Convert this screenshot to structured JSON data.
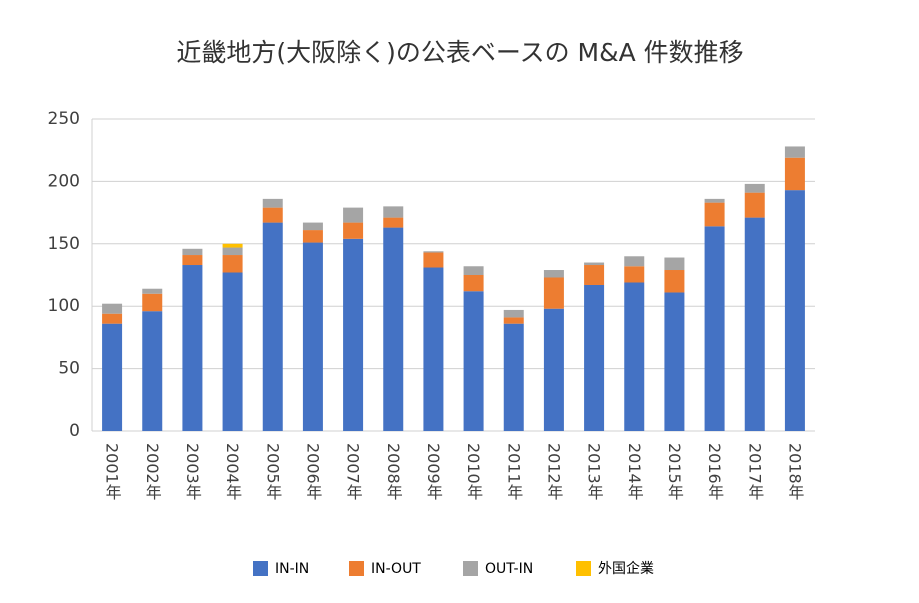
{
  "chart_data": {
    "type": "stacked_bar",
    "title": "近畿地方(大阪除く)の公表ベースの M&A 件数推移",
    "categories": [
      "2001年",
      "2002年",
      "2003年",
      "2004年",
      "2005年",
      "2006年",
      "2007年",
      "2008年",
      "2009年",
      "2010年",
      "2011年",
      "2012年",
      "2013年",
      "2014年",
      "2015年",
      "2016年",
      "2017年",
      "2018年"
    ],
    "series": [
      {
        "name": "IN-IN",
        "color": "#4472c4",
        "values": [
          86,
          96,
          133,
          127,
          167,
          151,
          154,
          163,
          131,
          112,
          86,
          98,
          117,
          119,
          111,
          164,
          171,
          193
        ]
      },
      {
        "name": "IN-OUT",
        "color": "#ed7d31",
        "values": [
          8,
          14,
          8,
          14,
          12,
          10,
          13,
          8,
          12,
          13,
          5,
          25,
          16,
          13,
          18,
          19,
          20,
          26
        ]
      },
      {
        "name": "OUT-IN",
        "color": "#a5a5a5",
        "values": [
          8,
          4,
          5,
          6,
          7,
          6,
          12,
          9,
          1,
          7,
          6,
          6,
          2,
          8,
          10,
          3,
          7,
          9
        ]
      },
      {
        "name": "外国企業",
        "color": "#ffc000",
        "values": [
          0,
          0,
          0,
          3,
          0,
          0,
          0,
          0,
          0,
          0,
          0,
          0,
          0,
          0,
          0,
          0,
          0,
          0
        ]
      }
    ],
    "ylim": [
      0,
      250
    ],
    "yticks": [
      0,
      50,
      100,
      150,
      200,
      250
    ],
    "grid": true
  }
}
